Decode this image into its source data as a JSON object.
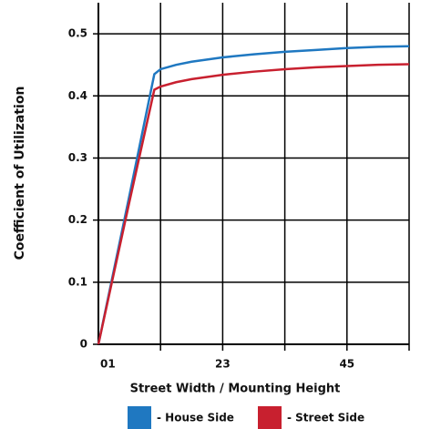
{
  "chart_data": {
    "type": "line",
    "xlabel": "Street Width / Mounting Height",
    "ylabel": "Coefficient of Utilization",
    "x": [
      0,
      0.5,
      0.9,
      1.0,
      1.25,
      1.5,
      2,
      2.5,
      3,
      3.5,
      4,
      4.5,
      5
    ],
    "series": [
      {
        "name": "- House Side",
        "color": "#1f78c1",
        "values": [
          0,
          0.24,
          0.435,
          0.443,
          0.45,
          0.455,
          0.462,
          0.467,
          0.471,
          0.474,
          0.477,
          0.479,
          0.48
        ]
      },
      {
        "name": "- Street Side",
        "color": "#c8202f",
        "values": [
          0,
          0.23,
          0.41,
          0.415,
          0.422,
          0.427,
          0.434,
          0.439,
          0.443,
          0.446,
          0.448,
          0.45,
          0.451
        ]
      }
    ],
    "xlim": [
      0,
      5
    ],
    "xticks": [
      {
        "value": 0,
        "label": "01"
      },
      {
        "value": 2,
        "label": "23"
      },
      {
        "value": 4,
        "label": "45"
      }
    ],
    "xgrid": [
      1,
      2,
      3,
      4,
      5
    ],
    "ylim": [
      0,
      0.55
    ],
    "yticks": [
      0,
      0.1,
      0.2,
      0.3,
      0.4,
      0.5
    ],
    "grid": true,
    "legend": "bottom"
  }
}
